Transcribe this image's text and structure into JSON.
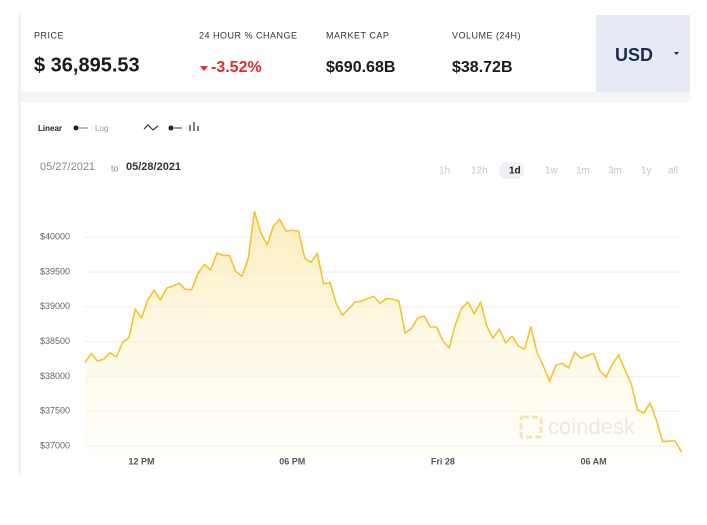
{
  "header": {
    "price_label": "PRICE",
    "price": "$ 36,895.53",
    "change_label": "24 HOUR % CHANGE",
    "change": "-3.52%",
    "market_cap_label": "MARKET CAP",
    "market_cap": "$690.68B",
    "volume_label": "VOLUME (24H)",
    "volume": "$38.72B",
    "currency": "USD"
  },
  "controls": {
    "linear": "Linear",
    "log": "Log",
    "date_from": "05/27/2021",
    "to": "to",
    "date_to": "05/28/2021",
    "ranges": [
      "1h",
      "12h",
      "1d",
      "1w",
      "1m",
      "3m",
      "1y",
      "all"
    ],
    "selected_range": 2
  },
  "watermark": "coindesk",
  "chart_data": {
    "type": "line",
    "color": "#f5c32c",
    "grid": true,
    "x": [
      9.75,
      10,
      10.25,
      10.5,
      10.75,
      11,
      11.25,
      11.5,
      11.75,
      12,
      12.25,
      12.5,
      12.75,
      13,
      13.25,
      13.5,
      13.75,
      14,
      14.25,
      14.5,
      14.75,
      15,
      15.25,
      15.5,
      15.75,
      16,
      16.25,
      16.5,
      16.75,
      17,
      17.25,
      17.5,
      17.75,
      18,
      18.25,
      18.5,
      18.75,
      19,
      19.25,
      19.5,
      19.75,
      20,
      20.25,
      20.5,
      20.75,
      21,
      21.25,
      21.5,
      21.75,
      22,
      22.25,
      22.5,
      22.75,
      23,
      23.25,
      23.5,
      23.75,
      24,
      24.25,
      24.5,
      24.75,
      25,
      25.25,
      25.5,
      25.75,
      26,
      26.25,
      26.5,
      26.75,
      27,
      27.25,
      27.5,
      27.75,
      28,
      28.25,
      28.5,
      28.75,
      29,
      29.25,
      29.5,
      29.75,
      30,
      30.25,
      30.5,
      30.75,
      31,
      31.25,
      31.5,
      31.75,
      32,
      32.25,
      32.5,
      32.75,
      33,
      33.25,
      33.5
    ],
    "values": [
      38200,
      38330,
      38220,
      38250,
      38340,
      38280,
      38490,
      38560,
      38970,
      38840,
      39100,
      39240,
      39100,
      39270,
      39300,
      39340,
      39250,
      39250,
      39480,
      39610,
      39530,
      39770,
      39740,
      39740,
      39510,
      39440,
      39700,
      40370,
      40070,
      39890,
      40160,
      40260,
      40090,
      40100,
      40090,
      39700,
      39640,
      39770,
      39330,
      39350,
      39050,
      38880,
      38970,
      39070,
      39080,
      39120,
      39150,
      39050,
      39120,
      39110,
      39080,
      38620,
      38690,
      38840,
      38870,
      38710,
      38710,
      38510,
      38410,
      38750,
      38980,
      39070,
      38900,
      39070,
      38720,
      38550,
      38680,
      38480,
      38580,
      38440,
      38390,
      38710,
      38340,
      38150,
      37930,
      38160,
      38190,
      38120,
      38350,
      38260,
      38300,
      38330,
      38080,
      37990,
      38180,
      38310,
      38090,
      37890,
      37520,
      37470,
      37620,
      37370,
      37060,
      37070,
      37070,
      36910
    ],
    "xlim": [
      9.55,
      33.6
    ],
    "xticks": [
      {
        "value": 12,
        "label": "12 PM"
      },
      {
        "value": 18,
        "label": "06 PM"
      },
      {
        "value": 24,
        "label": "Fri 28"
      },
      {
        "value": 30,
        "label": "06 AM"
      }
    ],
    "ylim": [
      36870,
      40680
    ],
    "yticks": [
      {
        "value": 37000,
        "label": "$37000"
      },
      {
        "value": 37500,
        "label": "$37500"
      },
      {
        "value": 38000,
        "label": "$38000"
      },
      {
        "value": 38500,
        "label": "$38500"
      },
      {
        "value": 39000,
        "label": "$39000"
      },
      {
        "value": 39500,
        "label": "$39500"
      },
      {
        "value": 40000,
        "label": "$40000"
      }
    ]
  }
}
